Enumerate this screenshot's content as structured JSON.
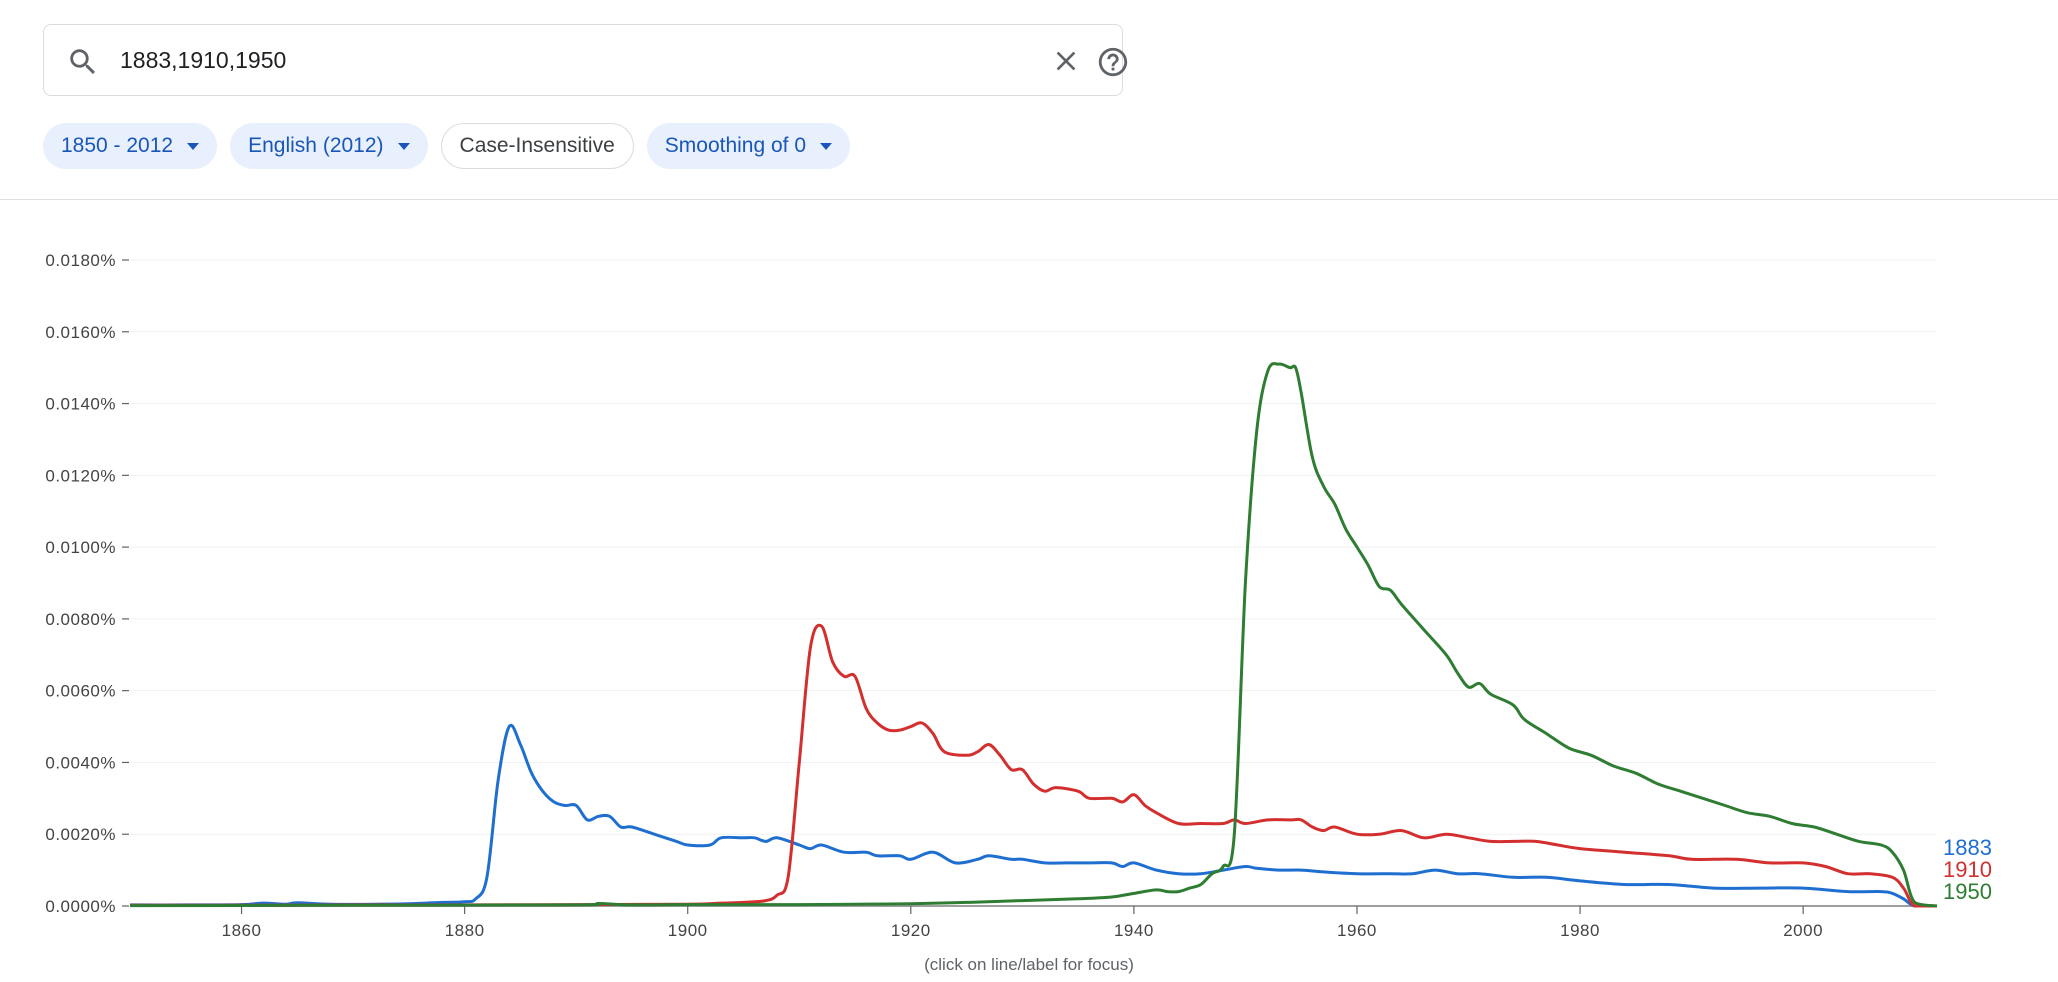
{
  "search": {
    "value": "1883,1910,1950",
    "search_icon": "search-icon",
    "clear_icon": "close-icon",
    "help_icon": "help-circle-icon"
  },
  "filters": {
    "year_range": "1850 - 2012",
    "corpus": "English (2012)",
    "case": "Case-Insensitive",
    "smoothing": "Smoothing of 0"
  },
  "footnote": "(click on line/label for focus)",
  "chart_data": {
    "type": "line",
    "xlim": [
      1850,
      2012
    ],
    "ylim": [
      0,
      0.018
    ],
    "y_ticks": [
      0,
      0.002,
      0.004,
      0.006,
      0.008,
      0.01,
      0.012,
      0.014,
      0.016,
      0.018
    ],
    "y_tick_labels": [
      "0.0000%",
      "0.0020%",
      "0.0040%",
      "0.0060%",
      "0.0080%",
      "0.0100%",
      "0.0120%",
      "0.0140%",
      "0.0160%",
      "0.0180%"
    ],
    "x_ticks": [
      1860,
      1880,
      1900,
      1920,
      1940,
      1960,
      1980,
      2000
    ],
    "x_tick_labels": [
      "1860",
      "1880",
      "1900",
      "1920",
      "1940",
      "1960",
      "1980",
      "2000"
    ],
    "grid": true,
    "legend_placement": "right-end-of-lines",
    "series": [
      {
        "name": "1883",
        "color": "#1f6fd1",
        "points": [
          [
            1850,
            3e-05
          ],
          [
            1855,
            3e-05
          ],
          [
            1860,
            4e-05
          ],
          [
            1862,
            8e-05
          ],
          [
            1864,
            5e-05
          ],
          [
            1865,
            9e-05
          ],
          [
            1868,
            5e-05
          ],
          [
            1872,
            5e-05
          ],
          [
            1875,
            6e-05
          ],
          [
            1878,
            0.0001
          ],
          [
            1880,
            0.00012
          ],
          [
            1881,
            0.0002
          ],
          [
            1882,
            0.0008
          ],
          [
            1883,
            0.0035
          ],
          [
            1884,
            0.005
          ],
          [
            1885,
            0.0045
          ],
          [
            1886,
            0.0037
          ],
          [
            1887,
            0.0032
          ],
          [
            1888,
            0.0029
          ],
          [
            1889,
            0.0028
          ],
          [
            1890,
            0.0028
          ],
          [
            1891,
            0.0024
          ],
          [
            1892,
            0.0025
          ],
          [
            1893,
            0.0025
          ],
          [
            1894,
            0.0022
          ],
          [
            1895,
            0.0022
          ],
          [
            1897,
            0.002
          ],
          [
            1899,
            0.0018
          ],
          [
            1900,
            0.0017
          ],
          [
            1902,
            0.0017
          ],
          [
            1903,
            0.0019
          ],
          [
            1905,
            0.0019
          ],
          [
            1906,
            0.0019
          ],
          [
            1907,
            0.0018
          ],
          [
            1908,
            0.0019
          ],
          [
            1910,
            0.0017
          ],
          [
            1911,
            0.0016
          ],
          [
            1912,
            0.0017
          ],
          [
            1914,
            0.0015
          ],
          [
            1916,
            0.0015
          ],
          [
            1917,
            0.0014
          ],
          [
            1919,
            0.0014
          ],
          [
            1920,
            0.0013
          ],
          [
            1922,
            0.0015
          ],
          [
            1924,
            0.0012
          ],
          [
            1926,
            0.0013
          ],
          [
            1927,
            0.0014
          ],
          [
            1929,
            0.0013
          ],
          [
            1930,
            0.0013
          ],
          [
            1932,
            0.0012
          ],
          [
            1934,
            0.0012
          ],
          [
            1936,
            0.0012
          ],
          [
            1938,
            0.0012
          ],
          [
            1939,
            0.0011
          ],
          [
            1940,
            0.0012
          ],
          [
            1942,
            0.001
          ],
          [
            1944,
            0.0009
          ],
          [
            1946,
            0.0009
          ],
          [
            1948,
            0.001
          ],
          [
            1950,
            0.0011
          ],
          [
            1951,
            0.00105
          ],
          [
            1953,
            0.001
          ],
          [
            1955,
            0.001
          ],
          [
            1957,
            0.00095
          ],
          [
            1960,
            0.0009
          ],
          [
            1963,
            0.0009
          ],
          [
            1965,
            0.0009
          ],
          [
            1967,
            0.001
          ],
          [
            1969,
            0.0009
          ],
          [
            1971,
            0.0009
          ],
          [
            1974,
            0.0008
          ],
          [
            1977,
            0.0008
          ],
          [
            1980,
            0.0007
          ],
          [
            1984,
            0.0006
          ],
          [
            1988,
            0.0006
          ],
          [
            1992,
            0.0005
          ],
          [
            1996,
            0.0005
          ],
          [
            2000,
            0.0005
          ],
          [
            2004,
            0.0004
          ],
          [
            2007,
            0.0004
          ],
          [
            2008,
            0.00035
          ],
          [
            2009,
            0.0002
          ],
          [
            2010,
            0.0
          ],
          [
            2012,
            0.0
          ]
        ]
      },
      {
        "name": "1910",
        "color": "#d32f2f",
        "points": [
          [
            1850,
            2e-05
          ],
          [
            1860,
            2e-05
          ],
          [
            1870,
            3e-05
          ],
          [
            1880,
            3e-05
          ],
          [
            1890,
            4e-05
          ],
          [
            1900,
            5e-05
          ],
          [
            1903,
            8e-05
          ],
          [
            1905,
            0.0001
          ],
          [
            1907,
            0.00015
          ],
          [
            1908,
            0.0003
          ],
          [
            1909,
            0.0008
          ],
          [
            1910,
            0.004
          ],
          [
            1911,
            0.0072
          ],
          [
            1912,
            0.0078
          ],
          [
            1913,
            0.0068
          ],
          [
            1914,
            0.0064
          ],
          [
            1915,
            0.0064
          ],
          [
            1916,
            0.0055
          ],
          [
            1917,
            0.0051
          ],
          [
            1918,
            0.0049
          ],
          [
            1919,
            0.0049
          ],
          [
            1920,
            0.005
          ],
          [
            1921,
            0.0051
          ],
          [
            1922,
            0.0048
          ],
          [
            1923,
            0.0043
          ],
          [
            1925,
            0.0042
          ],
          [
            1926,
            0.0043
          ],
          [
            1927,
            0.0045
          ],
          [
            1928,
            0.0042
          ],
          [
            1929,
            0.0038
          ],
          [
            1930,
            0.0038
          ],
          [
            1931,
            0.0034
          ],
          [
            1932,
            0.0032
          ],
          [
            1933,
            0.0033
          ],
          [
            1935,
            0.0032
          ],
          [
            1936,
            0.003
          ],
          [
            1938,
            0.003
          ],
          [
            1939,
            0.0029
          ],
          [
            1940,
            0.0031
          ],
          [
            1941,
            0.0028
          ],
          [
            1942,
            0.0026
          ],
          [
            1944,
            0.0023
          ],
          [
            1946,
            0.0023
          ],
          [
            1948,
            0.0023
          ],
          [
            1949,
            0.0024
          ],
          [
            1950,
            0.0023
          ],
          [
            1952,
            0.0024
          ],
          [
            1954,
            0.0024
          ],
          [
            1955,
            0.0024
          ],
          [
            1956,
            0.0022
          ],
          [
            1957,
            0.0021
          ],
          [
            1958,
            0.0022
          ],
          [
            1960,
            0.002
          ],
          [
            1962,
            0.002
          ],
          [
            1964,
            0.0021
          ],
          [
            1966,
            0.0019
          ],
          [
            1968,
            0.002
          ],
          [
            1970,
            0.0019
          ],
          [
            1972,
            0.0018
          ],
          [
            1974,
            0.0018
          ],
          [
            1976,
            0.0018
          ],
          [
            1978,
            0.0017
          ],
          [
            1980,
            0.0016
          ],
          [
            1984,
            0.0015
          ],
          [
            1988,
            0.0014
          ],
          [
            1990,
            0.0013
          ],
          [
            1994,
            0.0013
          ],
          [
            1997,
            0.0012
          ],
          [
            2000,
            0.0012
          ],
          [
            2002,
            0.0011
          ],
          [
            2004,
            0.0009
          ],
          [
            2006,
            0.0009
          ],
          [
            2008,
            0.0008
          ],
          [
            2009,
            0.0005
          ],
          [
            2010,
            0.0
          ],
          [
            2012,
            0.0
          ]
        ]
      },
      {
        "name": "1950",
        "color": "#2e7d32",
        "points": [
          [
            1850,
            1e-05
          ],
          [
            1870,
            2e-05
          ],
          [
            1890,
            3e-05
          ],
          [
            1892,
            7e-05
          ],
          [
            1895,
            3e-05
          ],
          [
            1900,
            4e-05
          ],
          [
            1910,
            4e-05
          ],
          [
            1915,
            5e-05
          ],
          [
            1920,
            6e-05
          ],
          [
            1925,
            0.0001
          ],
          [
            1930,
            0.00015
          ],
          [
            1935,
            0.0002
          ],
          [
            1938,
            0.00025
          ],
          [
            1940,
            0.00035
          ],
          [
            1942,
            0.00045
          ],
          [
            1943,
            0.0004
          ],
          [
            1944,
            0.0004
          ],
          [
            1945,
            0.0005
          ],
          [
            1946,
            0.0006
          ],
          [
            1947,
            0.0009
          ],
          [
            1948,
            0.0011
          ],
          [
            1949,
            0.002
          ],
          [
            1950,
            0.009
          ],
          [
            1951,
            0.0132
          ],
          [
            1952,
            0.0149
          ],
          [
            1953,
            0.0151
          ],
          [
            1954,
            0.015
          ],
          [
            1954.5,
            0.015
          ],
          [
            1955,
            0.0143
          ],
          [
            1956,
            0.0125
          ],
          [
            1957,
            0.0117
          ],
          [
            1958,
            0.0112
          ],
          [
            1959,
            0.0105
          ],
          [
            1960,
            0.01
          ],
          [
            1961,
            0.0095
          ],
          [
            1962,
            0.0089
          ],
          [
            1963,
            0.0088
          ],
          [
            1964,
            0.0084
          ],
          [
            1966,
            0.0077
          ],
          [
            1968,
            0.007
          ],
          [
            1969,
            0.0065
          ],
          [
            1970,
            0.0061
          ],
          [
            1971,
            0.0062
          ],
          [
            1972,
            0.0059
          ],
          [
            1974,
            0.0056
          ],
          [
            1975,
            0.0052
          ],
          [
            1977,
            0.0048
          ],
          [
            1979,
            0.0044
          ],
          [
            1981,
            0.0042
          ],
          [
            1983,
            0.0039
          ],
          [
            1985,
            0.0037
          ],
          [
            1987,
            0.0034
          ],
          [
            1989,
            0.0032
          ],
          [
            1991,
            0.003
          ],
          [
            1993,
            0.0028
          ],
          [
            1995,
            0.0026
          ],
          [
            1997,
            0.0025
          ],
          [
            1999,
            0.0023
          ],
          [
            2001,
            0.0022
          ],
          [
            2003,
            0.002
          ],
          [
            2005,
            0.0018
          ],
          [
            2007,
            0.0017
          ],
          [
            2008,
            0.0015
          ],
          [
            2009,
            0.001
          ],
          [
            2010,
            0.0001
          ],
          [
            2012,
            0.0
          ]
        ]
      }
    ]
  }
}
